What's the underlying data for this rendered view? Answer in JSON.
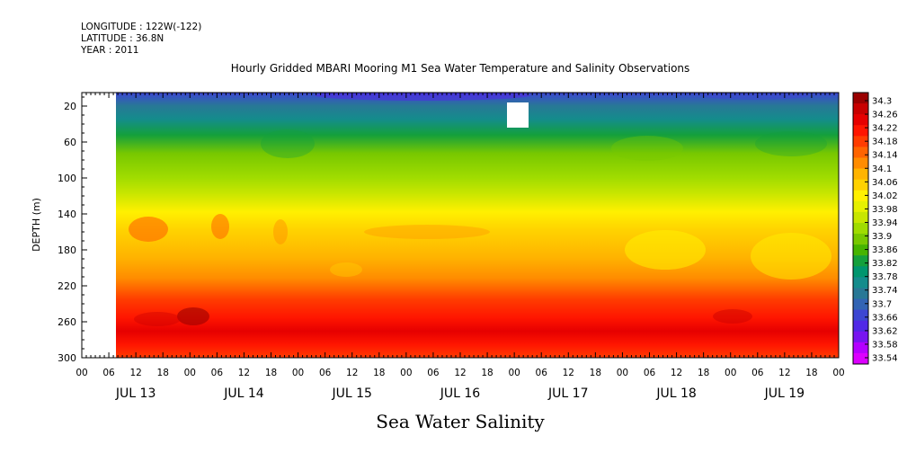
{
  "header": {
    "longitude": "LONGITUDE : 122W(-122)",
    "latitude": "LATITUDE : 36.8N",
    "year": "YEAR : 2011"
  },
  "chart_data": {
    "type": "heatmap",
    "title": "Hourly Gridded MBARI Mooring M1 Sea Water Temperature and Salinity Observations",
    "xlabel": "Sea Water Salinity",
    "ylabel": "DEPTH (m)",
    "y_ticks": [
      "20",
      "60",
      "100",
      "140",
      "180",
      "220",
      "260",
      "300"
    ],
    "ylim": [
      300,
      5
    ],
    "x_hour_ticks": [
      "00",
      "06",
      "12",
      "18",
      "00",
      "06",
      "12",
      "18",
      "00",
      "06",
      "12",
      "18",
      "00",
      "06",
      "12",
      "18",
      "00",
      "06",
      "12",
      "18",
      "00",
      "06",
      "12",
      "18",
      "00",
      "06",
      "12",
      "18",
      "00"
    ],
    "x_day_labels": [
      "JUL 13",
      "JUL 14",
      "JUL 15",
      "JUL 16",
      "JUL 17",
      "JUL 18",
      "JUL 19"
    ],
    "colorbar_labels": [
      "34.3",
      "34.26",
      "34.22",
      "34.18",
      "34.14",
      "34.1",
      "34.06",
      "34.02",
      "33.98",
      "33.94",
      "33.9",
      "33.86",
      "33.82",
      "33.78",
      "33.74",
      "33.7",
      "33.66",
      "33.62",
      "33.58",
      "33.54"
    ],
    "colorbar_colors": [
      "#9a0000",
      "#c80000",
      "#e60000",
      "#ff1500",
      "#ff3c00",
      "#ff6400",
      "#ff8c00",
      "#ffb400",
      "#ffd200",
      "#fff000",
      "#e6f000",
      "#c8e600",
      "#a0dc00",
      "#78c800",
      "#46b400",
      "#14a03c",
      "#00966e",
      "#148c8c",
      "#287896",
      "#3264b4",
      "#3c46d2",
      "#5028e6",
      "#7814f0",
      "#b400ff",
      "#dc00ff"
    ],
    "series": [
      {
        "depth": 5,
        "salinity": 33.68
      },
      {
        "depth": 20,
        "salinity": 33.72
      },
      {
        "depth": 40,
        "salinity": 33.78
      },
      {
        "depth": 60,
        "salinity": 33.86
      },
      {
        "depth": 80,
        "salinity": 33.92
      },
      {
        "depth": 100,
        "salinity": 33.96
      },
      {
        "depth": 120,
        "salinity": 34.0
      },
      {
        "depth": 140,
        "salinity": 34.06
      },
      {
        "depth": 160,
        "salinity": 34.09
      },
      {
        "depth": 180,
        "salinity": 34.1
      },
      {
        "depth": 200,
        "salinity": 34.12
      },
      {
        "depth": 220,
        "salinity": 34.15
      },
      {
        "depth": 240,
        "salinity": 34.2
      },
      {
        "depth": 260,
        "salinity": 34.24
      },
      {
        "depth": 280,
        "salinity": 34.2
      },
      {
        "depth": 300,
        "salinity": 34.17
      }
    ]
  }
}
